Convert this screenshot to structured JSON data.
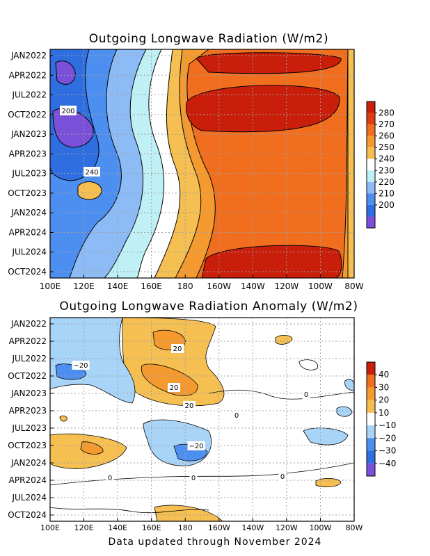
{
  "footer": "Data updated through November 2024",
  "colors": {
    "w_m2": [
      "#7a50d8",
      "#2f6ee0",
      "#4d8ff0",
      "#8dbbf6",
      "#bff0f6",
      "#ffffff",
      "#f6bf52",
      "#f49a2e",
      "#f06e1e",
      "#e03c10",
      "#c81e0a"
    ],
    "anomaly": [
      "#7a50d8",
      "#2f6ee0",
      "#4d8ff0",
      "#a8d4f8",
      "#ffffff",
      "#f6bf52",
      "#f49a2e",
      "#f06e1e",
      "#c81e0a"
    ]
  },
  "chart_data": [
    {
      "type": "heatmap",
      "title": "Outgoing Longwave Radiation (W/m2)",
      "x_ticks": [
        "100E",
        "120E",
        "140E",
        "160E",
        "180",
        "160W",
        "140W",
        "120W",
        "100W",
        "80W"
      ],
      "y_ticks": [
        "JAN2022",
        "APR2022",
        "JUL2022",
        "OCT2022",
        "JAN2023",
        "APR2023",
        "JUL2023",
        "OCT2023",
        "JAN2024",
        "APR2024",
        "JUL2024",
        "OCT2024"
      ],
      "colorbar_ticks": [
        "280",
        "270",
        "260",
        "250",
        "240",
        "230",
        "220",
        "210",
        "200"
      ],
      "colorbar_levels": [
        200,
        210,
        220,
        230,
        240,
        250,
        260,
        270,
        280
      ],
      "contour_labels": [
        "200",
        "240"
      ],
      "grid": true
    },
    {
      "type": "heatmap",
      "title": "Outgoing Longwave Radiation Anomaly (W/m2)",
      "x_ticks": [
        "100E",
        "120E",
        "140E",
        "160E",
        "180",
        "160W",
        "140W",
        "120W",
        "100W",
        "80W"
      ],
      "y_ticks": [
        "JAN2022",
        "APR2022",
        "JUL2022",
        "OCT2022",
        "JAN2023",
        "APR2023",
        "JUL2023",
        "OCT2023",
        "JAN2024",
        "APR2024",
        "JUL2024",
        "OCT2024"
      ],
      "colorbar_ticks": [
        "40",
        "30",
        "20",
        "10",
        "−10",
        "−20",
        "−30",
        "−40"
      ],
      "colorbar_levels": [
        -40,
        -30,
        -20,
        -10,
        10,
        20,
        30,
        40
      ],
      "contour_labels": [
        "20",
        "−20",
        "20",
        "20",
        "0",
        "0",
        "−20",
        "0",
        "0",
        "0"
      ],
      "grid": true
    }
  ]
}
